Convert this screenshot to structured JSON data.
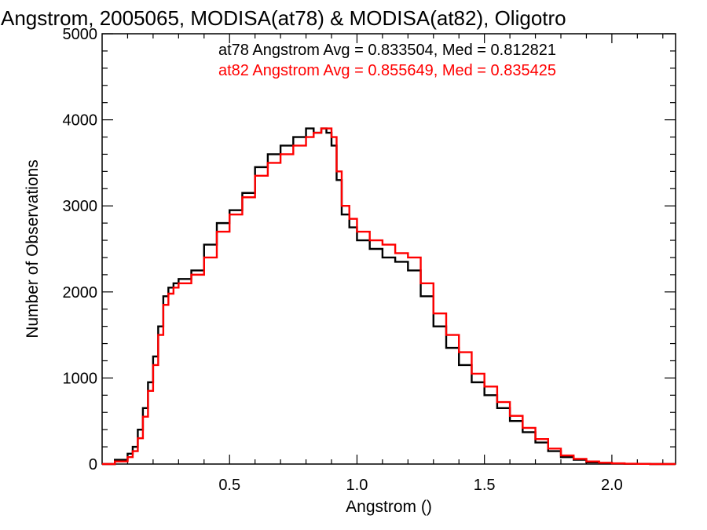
{
  "chart_data": {
    "type": "line",
    "title": "Angstrom, 2005065, MODISA(at78) & MODISA(at82), Oligotro",
    "xlabel": "Angstrom ()",
    "ylabel": "Number of Observations",
    "xlim": [
      0.0,
      2.25
    ],
    "ylim": [
      0,
      5000
    ],
    "xticks": [
      0.5,
      1.0,
      1.5,
      2.0
    ],
    "xtick_labels": [
      "0.5",
      "1.0",
      "1.5",
      "2.0"
    ],
    "yticks": [
      0,
      1000,
      2000,
      3000,
      4000,
      5000
    ],
    "ytick_labels": [
      "0",
      "1000",
      "2000",
      "3000",
      "4000",
      "5000"
    ],
    "grid": false,
    "annotations": [
      {
        "text": "at78 Angstrom Avg = 0.833504, Med = 0.812821",
        "color": "#000000"
      },
      {
        "text": "at82 Angstrom Avg = 0.855649, Med = 0.835425",
        "color": "#ff0000"
      }
    ],
    "series": [
      {
        "color": "#000000",
        "x": [
          0.0,
          0.05,
          0.1,
          0.12,
          0.14,
          0.16,
          0.18,
          0.2,
          0.22,
          0.24,
          0.26,
          0.28,
          0.3,
          0.35,
          0.4,
          0.45,
          0.5,
          0.55,
          0.6,
          0.65,
          0.7,
          0.75,
          0.8,
          0.83,
          0.86,
          0.88,
          0.9,
          0.92,
          0.94,
          0.97,
          1.0,
          1.05,
          1.1,
          1.15,
          1.2,
          1.25,
          1.3,
          1.35,
          1.4,
          1.45,
          1.5,
          1.55,
          1.6,
          1.65,
          1.7,
          1.75,
          1.8,
          1.85,
          1.9,
          1.95,
          2.0,
          2.05,
          2.1,
          2.15,
          2.2,
          2.25
        ],
        "y": [
          0,
          50,
          120,
          200,
          400,
          650,
          950,
          1250,
          1600,
          1950,
          2050,
          2100,
          2150,
          2250,
          2550,
          2800,
          2950,
          3150,
          3450,
          3600,
          3700,
          3800,
          3900,
          3850,
          3900,
          3850,
          3700,
          3300,
          2900,
          2750,
          2600,
          2500,
          2400,
          2350,
          2250,
          1950,
          1600,
          1350,
          1150,
          950,
          800,
          650,
          500,
          370,
          250,
          150,
          80,
          50,
          20,
          10,
          5,
          3,
          2,
          0,
          0,
          0
        ]
      },
      {
        "color": "#ff0000",
        "x": [
          0.0,
          0.05,
          0.1,
          0.12,
          0.14,
          0.16,
          0.18,
          0.2,
          0.22,
          0.24,
          0.26,
          0.28,
          0.3,
          0.35,
          0.4,
          0.45,
          0.5,
          0.55,
          0.6,
          0.65,
          0.7,
          0.75,
          0.8,
          0.83,
          0.86,
          0.88,
          0.9,
          0.92,
          0.94,
          0.97,
          1.0,
          1.05,
          1.1,
          1.15,
          1.2,
          1.25,
          1.3,
          1.35,
          1.4,
          1.45,
          1.5,
          1.55,
          1.6,
          1.65,
          1.7,
          1.75,
          1.8,
          1.85,
          1.9,
          1.95,
          2.0,
          2.05,
          2.1,
          2.15,
          2.2,
          2.25
        ],
        "y": [
          0,
          30,
          80,
          150,
          300,
          550,
          850,
          1150,
          1500,
          1850,
          1980,
          2050,
          2100,
          2200,
          2400,
          2700,
          2900,
          3100,
          3350,
          3500,
          3600,
          3700,
          3800,
          3850,
          3900,
          3900,
          3800,
          3400,
          3000,
          2850,
          2700,
          2600,
          2550,
          2450,
          2400,
          2100,
          1750,
          1500,
          1300,
          1050,
          900,
          720,
          560,
          420,
          290,
          180,
          100,
          60,
          30,
          15,
          8,
          4,
          2,
          0,
          0,
          0
        ]
      }
    ]
  }
}
